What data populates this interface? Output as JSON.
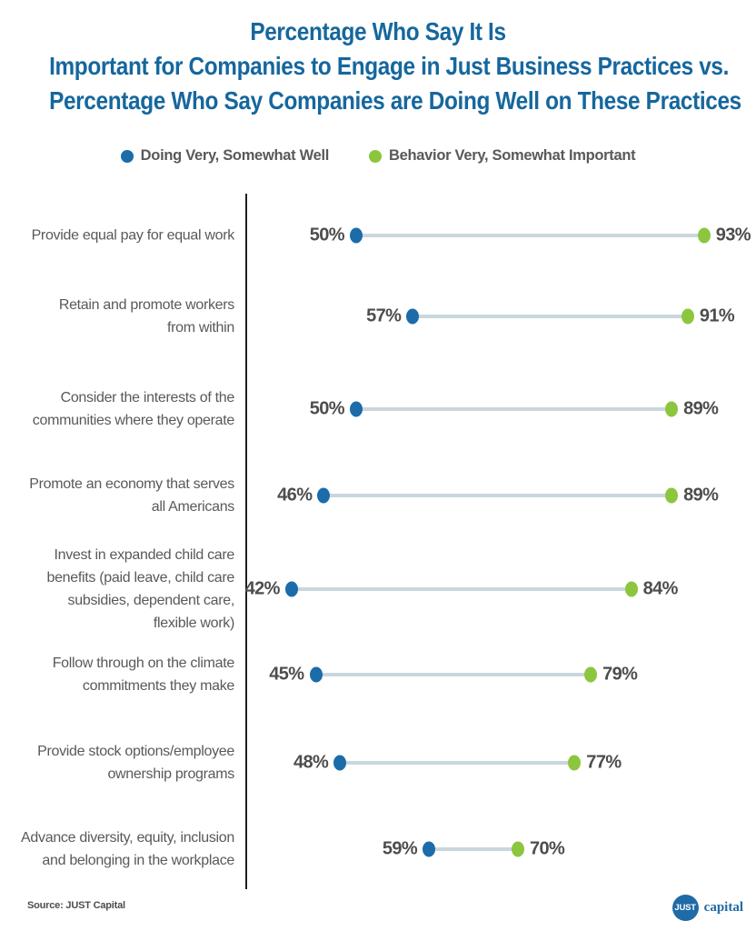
{
  "title": {
    "lines": [
      "Percentage Who Say It Is",
      "Important for Companies to Engage in Just Business Practices vs.",
      "Percentage Who Say Companies are Doing Well on These Practices"
    ]
  },
  "legend": [
    {
      "label": "Doing Very, Somewhat Well",
      "color": "#1b6ca9"
    },
    {
      "label": "Behavior Very, Somewhat Important",
      "color": "#8cc63e"
    }
  ],
  "chart_data": {
    "type": "dumbbell",
    "orientation": "horizontal",
    "categories": [
      "Provide equal pay for equal work",
      "Retain and promote workers\nfrom within",
      "Consider the interests of the\ncommunities where they operate",
      "Promote an economy that serves\nall Americans",
      "Invest in expanded child care\nbenefits (paid leave, child care\nsubsidies, dependent care,\nflexible work)",
      "Follow through on the climate\ncommitments they make",
      "Provide stock options/employee\nownership programs",
      "Advance diversity, equity, inclusion\nand belonging in the workplace"
    ],
    "series": [
      {
        "name": "Doing Very, Somewhat Well",
        "color": "#1b6ca9",
        "values": [
          50,
          57,
          50,
          46,
          42,
          45,
          48,
          59
        ]
      },
      {
        "name": "Behavior Very, Somewhat Important",
        "color": "#8cc63e",
        "values": [
          93,
          91,
          89,
          89,
          84,
          79,
          77,
          70
        ]
      }
    ],
    "value_suffix": "%",
    "connector_color": "#c9d6dd",
    "axis_line_color": "#1f1f1f",
    "xlim": [
      36,
      100
    ],
    "grid": false,
    "legend_position": "top"
  },
  "footer": {
    "source": "Source: JUST Capital",
    "logo": {
      "circle_text": "JUST",
      "wordmark": "capital",
      "color": "#1e6ba7"
    }
  },
  "colors": {
    "title": "#15679e",
    "category_text": "#58595b",
    "value_text": "#4d4d4d",
    "background": "#ffffff"
  }
}
